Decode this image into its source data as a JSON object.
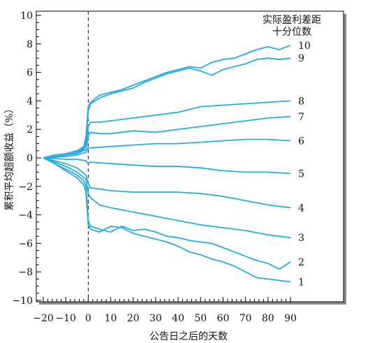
{
  "chart_data": {
    "type": "line",
    "title": "",
    "xlabel": "公告日之后的天数",
    "ylabel": "累积平均超额收益（%）",
    "legend_title": [
      "实际盈利差距",
      "十分位数"
    ],
    "xlim": [
      -20,
      90
    ],
    "ylim": [
      -10,
      10
    ],
    "xticks": [
      -20,
      -10,
      0,
      10,
      20,
      30,
      40,
      50,
      60,
      70,
      80,
      90
    ],
    "xtick_labels": [
      "−20",
      "−10",
      "0",
      "10",
      "20",
      "30",
      "40",
      "50",
      "60",
      "70",
      "80",
      "90"
    ],
    "yticks": [
      -10,
      -8,
      -6,
      -4,
      -2,
      0,
      2,
      4,
      6,
      8,
      10
    ],
    "ytick_labels": [
      "−10",
      "−8",
      "−6",
      "−4",
      "−2",
      "0",
      "2",
      "4",
      "6",
      "8",
      "10"
    ],
    "event_line_x": 0,
    "line_color": "#29abe2",
    "series": [
      {
        "name": "10",
        "x": [
          -20,
          -15,
          -10,
          -5,
          -2,
          -1,
          0,
          1,
          5,
          10,
          15,
          20,
          25,
          30,
          35,
          40,
          45,
          50,
          55,
          60,
          65,
          70,
          75,
          80,
          85,
          90
        ],
        "values": [
          0,
          0.2,
          0.3,
          0.5,
          0.8,
          1.5,
          3.6,
          3.9,
          4.4,
          4.6,
          4.8,
          5.1,
          5.4,
          5.7,
          6.0,
          6.2,
          6.4,
          6.3,
          6.7,
          6.9,
          7.0,
          7.3,
          7.6,
          7.8,
          7.6,
          7.9
        ]
      },
      {
        "name": "9",
        "x": [
          -20,
          -15,
          -10,
          -5,
          -2,
          -1,
          0,
          1,
          5,
          10,
          15,
          20,
          25,
          30,
          35,
          40,
          45,
          50,
          55,
          60,
          65,
          70,
          75,
          80,
          85,
          90
        ],
        "values": [
          0,
          0.1,
          0.2,
          0.4,
          0.6,
          1.2,
          3.3,
          3.8,
          4.2,
          4.5,
          4.7,
          4.9,
          5.3,
          5.6,
          5.9,
          6.1,
          6.3,
          6.1,
          5.8,
          6.2,
          6.4,
          6.6,
          6.9,
          7.0,
          6.9,
          7.0
        ]
      },
      {
        "name": "8",
        "x": [
          -20,
          -10,
          -5,
          -1,
          0,
          1,
          5,
          10,
          20,
          30,
          40,
          50,
          60,
          70,
          80,
          90
        ],
        "values": [
          0,
          0.2,
          0.4,
          0.8,
          2.2,
          2.5,
          2.5,
          2.6,
          2.8,
          3.0,
          3.2,
          3.6,
          3.7,
          3.8,
          3.9,
          4.0
        ]
      },
      {
        "name": "7",
        "x": [
          -20,
          -10,
          -5,
          -1,
          0,
          1,
          5,
          10,
          20,
          30,
          40,
          50,
          60,
          70,
          80,
          90
        ],
        "values": [
          0,
          0.2,
          0.3,
          0.6,
          1.5,
          1.8,
          1.7,
          1.7,
          1.9,
          1.8,
          2.0,
          2.2,
          2.4,
          2.6,
          2.8,
          2.9
        ]
      },
      {
        "name": "6",
        "x": [
          -20,
          -10,
          -5,
          -1,
          0,
          1,
          10,
          20,
          30,
          40,
          50,
          60,
          70,
          80,
          90
        ],
        "values": [
          0,
          0.1,
          0.2,
          0.4,
          0.7,
          0.7,
          0.8,
          0.9,
          1.0,
          1.0,
          1.1,
          1.2,
          1.3,
          1.3,
          1.2
        ]
      },
      {
        "name": "5",
        "x": [
          -20,
          -10,
          -5,
          -1,
          0,
          1,
          10,
          20,
          30,
          40,
          50,
          60,
          70,
          80,
          90
        ],
        "values": [
          0,
          -0.1,
          -0.1,
          -0.2,
          -0.4,
          -0.3,
          -0.4,
          -0.5,
          -0.6,
          -0.6,
          -0.7,
          -0.9,
          -1.0,
          -1.0,
          -1.1
        ]
      },
      {
        "name": "4",
        "x": [
          -20,
          -10,
          -5,
          -1,
          0,
          1,
          10,
          20,
          30,
          40,
          50,
          60,
          70,
          80,
          90
        ],
        "values": [
          0,
          -0.4,
          -0.7,
          -1.2,
          -1.8,
          -2.1,
          -2.3,
          -2.4,
          -2.4,
          -2.4,
          -2.5,
          -2.7,
          -3.0,
          -3.3,
          -3.5
        ]
      },
      {
        "name": "3",
        "x": [
          -20,
          -10,
          -5,
          -1,
          0,
          1,
          5,
          10,
          20,
          30,
          40,
          50,
          60,
          70,
          80,
          90
        ],
        "values": [
          0,
          -0.6,
          -1.0,
          -1.5,
          -2.5,
          -2.8,
          -3.3,
          -3.5,
          -3.8,
          -4.1,
          -4.4,
          -4.7,
          -4.9,
          -5.1,
          -5.4,
          -5.6
        ]
      },
      {
        "name": "2",
        "x": [
          -20,
          -15,
          -10,
          -5,
          -2,
          -1,
          0,
          1,
          5,
          10,
          15,
          20,
          25,
          30,
          35,
          40,
          45,
          50,
          55,
          60,
          65,
          70,
          75,
          80,
          85,
          90
        ],
        "values": [
          0,
          -0.4,
          -0.8,
          -1.2,
          -1.6,
          -2.0,
          -4.4,
          -4.8,
          -5.0,
          -5.2,
          -4.8,
          -5.1,
          -5.0,
          -5.2,
          -5.5,
          -5.6,
          -5.8,
          -5.9,
          -6.0,
          -6.3,
          -6.6,
          -6.9,
          -7.2,
          -7.4,
          -7.8,
          -7.3
        ]
      },
      {
        "name": "1",
        "x": [
          -20,
          -15,
          -10,
          -5,
          -2,
          -1,
          0,
          1,
          5,
          10,
          15,
          20,
          25,
          30,
          35,
          40,
          45,
          50,
          55,
          60,
          65,
          70,
          75,
          80,
          85,
          90
        ],
        "values": [
          0,
          -0.4,
          -0.9,
          -1.4,
          -1.9,
          -2.4,
          -4.7,
          -5.0,
          -5.2,
          -4.8,
          -4.9,
          -5.3,
          -5.5,
          -5.7,
          -5.9,
          -6.2,
          -6.6,
          -6.8,
          -7.1,
          -7.3,
          -7.6,
          -8.0,
          -8.4,
          -8.5,
          -8.6,
          -8.7
        ]
      }
    ]
  }
}
